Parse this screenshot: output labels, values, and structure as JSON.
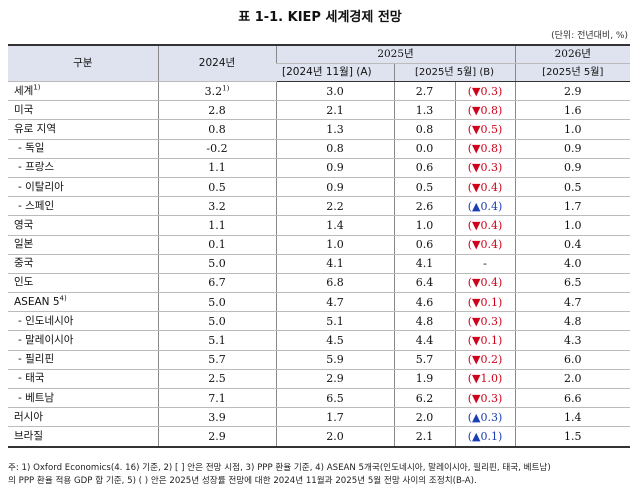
{
  "title": "표 1-1. KIEP 세계경제 전망",
  "unit": "(단위: 전년대비, %)",
  "header": {
    "category": "구분",
    "y2024": "2024년",
    "y2025": "2025년",
    "y2026": "2026년",
    "nov": "[2024년 11월] (A)",
    "may": "[2025년 5월] (B)",
    "may2026": "[2025년 5월]"
  },
  "rows": [
    {
      "name": "세계",
      "sup": "1)",
      "v2024": "3.2",
      "v2024_sup": "1)",
      "a": "3.0",
      "b": "2.7",
      "diff": "(▼0.3)",
      "trend": "neg",
      "v2026": "2.9",
      "sub": false
    },
    {
      "name": "미국",
      "sup": "",
      "v2024": "2.8",
      "v2024_sup": "",
      "a": "2.1",
      "b": "1.3",
      "diff": "(▼0.8)",
      "trend": "neg",
      "v2026": "1.6",
      "sub": false
    },
    {
      "name": "유로 지역",
      "sup": "",
      "v2024": "0.8",
      "v2024_sup": "",
      "a": "1.3",
      "b": "0.8",
      "diff": "(▼0.5)",
      "trend": "neg",
      "v2026": "1.0",
      "sub": false
    },
    {
      "name": "- 독일",
      "sup": "",
      "v2024": "-0.2",
      "v2024_sup": "",
      "a": "0.8",
      "b": "0.0",
      "diff": "(▼0.8)",
      "trend": "neg",
      "v2026": "0.9",
      "sub": true
    },
    {
      "name": "- 프랑스",
      "sup": "",
      "v2024": "1.1",
      "v2024_sup": "",
      "a": "0.9",
      "b": "0.6",
      "diff": "(▼0.3)",
      "trend": "neg",
      "v2026": "0.9",
      "sub": true
    },
    {
      "name": "- 이탈리아",
      "sup": "",
      "v2024": "0.5",
      "v2024_sup": "",
      "a": "0.9",
      "b": "0.5",
      "diff": "(▼0.4)",
      "trend": "neg",
      "v2026": "0.5",
      "sub": true
    },
    {
      "name": "- 스페인",
      "sup": "",
      "v2024": "3.2",
      "v2024_sup": "",
      "a": "2.2",
      "b": "2.6",
      "diff": "(▲0.4)",
      "trend": "pos",
      "v2026": "1.7",
      "sub": true
    },
    {
      "name": "영국",
      "sup": "",
      "v2024": "1.1",
      "v2024_sup": "",
      "a": "1.4",
      "b": "1.0",
      "diff": "(▼0.4)",
      "trend": "neg",
      "v2026": "1.0",
      "sub": false
    },
    {
      "name": "일본",
      "sup": "",
      "v2024": "0.1",
      "v2024_sup": "",
      "a": "1.0",
      "b": "0.6",
      "diff": "(▼0.4)",
      "trend": "neg",
      "v2026": "0.4",
      "sub": false
    },
    {
      "name": "중국",
      "sup": "",
      "v2024": "5.0",
      "v2024_sup": "",
      "a": "4.1",
      "b": "4.1",
      "diff": "-",
      "trend": "none",
      "v2026": "4.0",
      "sub": false
    },
    {
      "name": "인도",
      "sup": "",
      "v2024": "6.7",
      "v2024_sup": "",
      "a": "6.8",
      "b": "6.4",
      "diff": "(▼0.4)",
      "trend": "neg",
      "v2026": "6.5",
      "sub": false
    },
    {
      "name": "ASEAN 5",
      "sup": "4)",
      "v2024": "5.0",
      "v2024_sup": "",
      "a": "4.7",
      "b": "4.6",
      "diff": "(▼0.1)",
      "trend": "neg",
      "v2026": "4.7",
      "sub": false
    },
    {
      "name": "- 인도네시아",
      "sup": "",
      "v2024": "5.0",
      "v2024_sup": "",
      "a": "5.1",
      "b": "4.8",
      "diff": "(▼0.3)",
      "trend": "neg",
      "v2026": "4.8",
      "sub": true
    },
    {
      "name": "- 말레이시아",
      "sup": "",
      "v2024": "5.1",
      "v2024_sup": "",
      "a": "4.5",
      "b": "4.4",
      "diff": "(▼0.1)",
      "trend": "neg",
      "v2026": "4.3",
      "sub": true
    },
    {
      "name": "- 필리핀",
      "sup": "",
      "v2024": "5.7",
      "v2024_sup": "",
      "a": "5.9",
      "b": "5.7",
      "diff": "(▼0.2)",
      "trend": "neg",
      "v2026": "6.0",
      "sub": true
    },
    {
      "name": "- 태국",
      "sup": "",
      "v2024": "2.5",
      "v2024_sup": "",
      "a": "2.9",
      "b": "1.9",
      "diff": "(▼1.0)",
      "trend": "neg",
      "v2026": "2.0",
      "sub": true
    },
    {
      "name": "- 베트남",
      "sup": "",
      "v2024": "7.1",
      "v2024_sup": "",
      "a": "6.5",
      "b": "6.2",
      "diff": "(▼0.3)",
      "trend": "neg",
      "v2026": "6.6",
      "sub": true
    },
    {
      "name": "러시아",
      "sup": "",
      "v2024": "3.9",
      "v2024_sup": "",
      "a": "1.7",
      "b": "2.0",
      "diff": "(▲0.3)",
      "trend": "pos",
      "v2026": "1.4",
      "sub": false
    },
    {
      "name": "브라질",
      "sup": "",
      "v2024": "2.9",
      "v2024_sup": "",
      "a": "2.0",
      "b": "2.1",
      "diff": "(▲0.1)",
      "trend": "pos",
      "v2026": "1.5",
      "sub": false
    }
  ],
  "notes": [
    "주: 1) Oxford Economics(4. 16) 기준, 2) [ ] 안은 전망 시점, 3) PPP 환율 기준, 4) ASEAN 5개국(인도네시아, 말레이시아, 필리핀, 태국, 베트남)",
    "의 PPP 환율 적용 GDP 합 기준, 5) ( ) 안은 2025년 성장률 전망에 대한 2024년 11월과 2025년 5월 전망 사이의 조정치(B-A)."
  ],
  "colors": {
    "down": "#d0021b",
    "up": "#1a3fb0",
    "header_bg": "#dfe3ef"
  }
}
